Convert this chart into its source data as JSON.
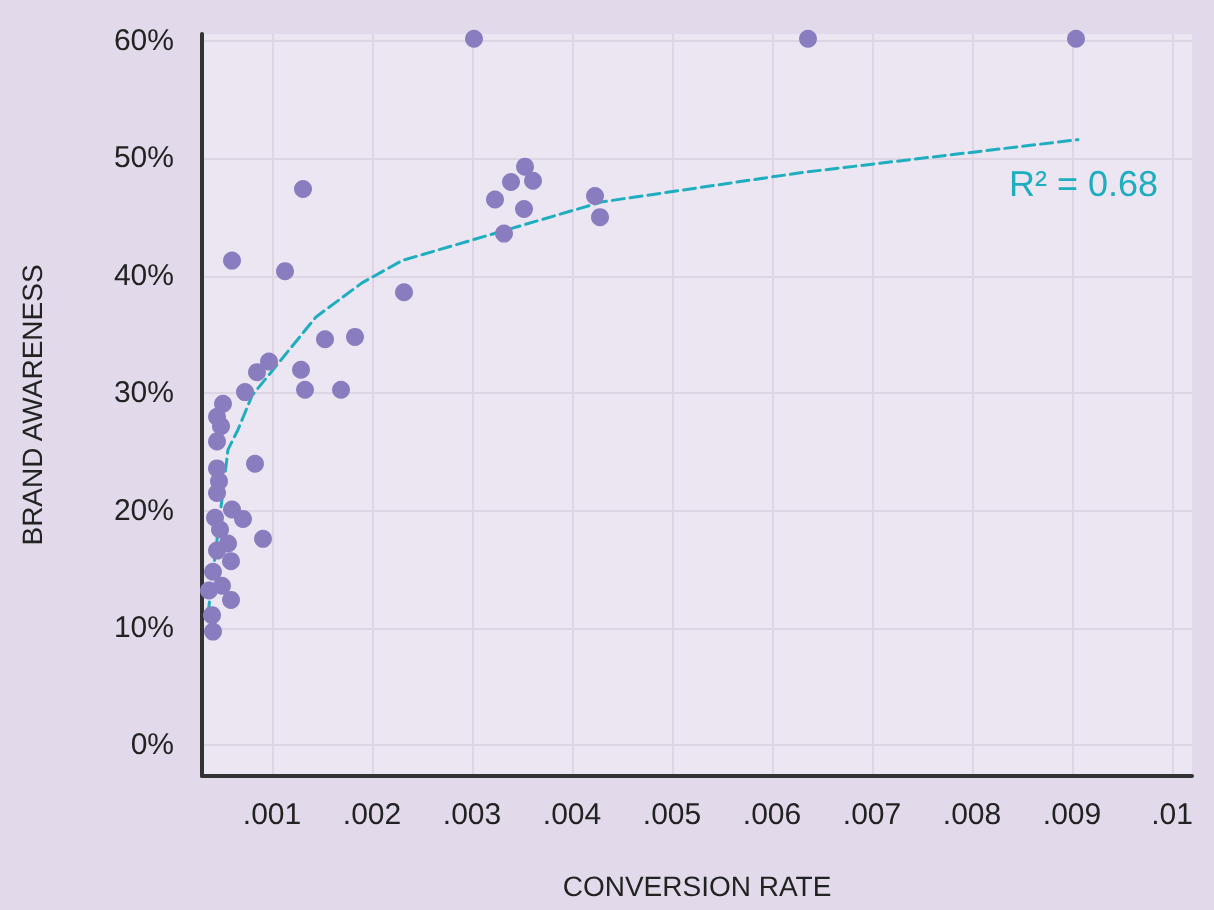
{
  "chart_data": {
    "type": "scatter",
    "xlabel": "CONVERSION RATE",
    "ylabel": "BRAND AWARENESS",
    "xlim": [
      0.0003,
      0.0102
    ],
    "ylim": [
      -2.6,
      60.6
    ],
    "xticks": [
      {
        "value": 0.001,
        "label": ".001"
      },
      {
        "value": 0.002,
        "label": ".002"
      },
      {
        "value": 0.003,
        "label": ".003"
      },
      {
        "value": 0.004,
        "label": ".004"
      },
      {
        "value": 0.005,
        "label": ".005"
      },
      {
        "value": 0.006,
        "label": ".006"
      },
      {
        "value": 0.007,
        "label": ".007"
      },
      {
        "value": 0.008,
        "label": ".008"
      },
      {
        "value": 0.009,
        "label": ".009"
      },
      {
        "value": 0.01,
        "label": ".01"
      }
    ],
    "yticks": [
      {
        "value": 0,
        "label": "0%"
      },
      {
        "value": 10,
        "label": "10%"
      },
      {
        "value": 20,
        "label": "20%"
      },
      {
        "value": 30,
        "label": "30%"
      },
      {
        "value": 40,
        "label": "40%"
      },
      {
        "value": 50,
        "label": "50%"
      },
      {
        "value": 60,
        "label": "60%"
      }
    ],
    "grid": true,
    "marker": "circle",
    "annotations": [
      "R² = 0.68"
    ],
    "series": [
      {
        "color": "#8a7dbf",
        "x": [
          0.00302,
          0.00636,
          0.00904,
          0.00131,
          0.0006,
          0.00113,
          0.00232,
          0.00153,
          0.00183,
          0.00097,
          0.00129,
          0.00085,
          0.00073,
          0.00133,
          0.00169,
          0.00051,
          0.00045,
          0.00049,
          0.00323,
          0.00339,
          0.00353,
          0.00361,
          0.00352,
          0.00332,
          0.00423,
          0.00428,
          0.00045,
          0.00083,
          0.00045,
          0.00047,
          0.00045,
          0.0006,
          0.00043,
          0.00071,
          0.00048,
          0.00091,
          0.00056,
          0.00045,
          0.00059,
          0.00041,
          0.0005,
          0.00037,
          0.00059,
          0.0004,
          0.00041
        ],
        "values": [
          60.2,
          60.2,
          60.2,
          47.4,
          41.3,
          40.4,
          38.6,
          34.6,
          34.8,
          32.7,
          32.0,
          31.8,
          30.1,
          30.3,
          30.3,
          29.1,
          28.0,
          27.2,
          46.5,
          48.0,
          49.3,
          48.1,
          45.7,
          43.6,
          46.8,
          45.0,
          25.9,
          24.0,
          23.6,
          22.5,
          21.5,
          20.1,
          19.4,
          19.3,
          18.4,
          17.6,
          17.2,
          16.6,
          15.7,
          14.8,
          13.6,
          13.2,
          12.4,
          11.1,
          9.7
        ]
      },
      {
        "type": "line",
        "color": "#1eaebf",
        "line_style": "dashed",
        "marker": "none",
        "x": [
          0.00036,
          0.00056,
          0.00066,
          0.0008,
          0.00144,
          0.0019,
          0.0023,
          0.0043,
          0.0063,
          0.00906
        ],
        "values": [
          11.2,
          25.2,
          26.9,
          29.8,
          36.5,
          39.4,
          41.3,
          46.3,
          48.8,
          51.6
        ]
      }
    ]
  }
}
